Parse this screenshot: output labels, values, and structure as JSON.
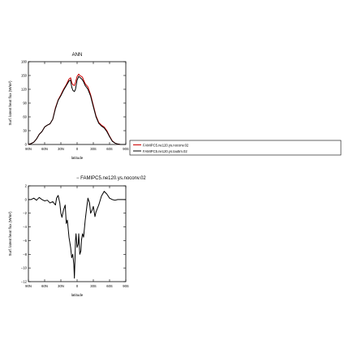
{
  "chart_data": [
    {
      "type": "line",
      "title": "ANN",
      "xlabel": "latitude",
      "ylabel": "Surf. latent heat flux (W/m²)",
      "xlim": [
        90,
        -90
      ],
      "ylim": [
        0,
        180
      ],
      "x_ticks": [
        90,
        60,
        30,
        0,
        -30,
        -60,
        -90
      ],
      "x_tick_labels": [
        "90N",
        "60N",
        "30N",
        "0",
        "30S",
        "60S",
        "90S"
      ],
      "y_ticks": [
        0,
        30,
        60,
        90,
        120,
        150,
        180
      ],
      "y_tick_labels": [
        "0",
        "30",
        "60",
        "90",
        "120",
        "150",
        "180"
      ],
      "legend": {
        "placement": "right",
        "entries": [
          {
            "label": "FAMIPC5.ne120.ys.noconv.02",
            "color": "#cc0000"
          },
          {
            "label": "FAMIPC5.ne120.ys.tau5m.02",
            "color": "#000000"
          }
        ]
      },
      "x": [
        90,
        85,
        80,
        75,
        70,
        65,
        60,
        55,
        50,
        45,
        40,
        35,
        30,
        25,
        20,
        15,
        12,
        10,
        8,
        5,
        3,
        0,
        -3,
        -5,
        -8,
        -10,
        -12,
        -15,
        -20,
        -25,
        -30,
        -35,
        -40,
        -45,
        -50,
        -55,
        -60,
        -65,
        -70,
        -75,
        -80,
        -85,
        -90
      ],
      "series": [
        {
          "name": "FAMIPC5.ne120.ys.noconv.02",
          "color": "#cc0000",
          "values": [
            0,
            2,
            5,
            12,
            22,
            28,
            38,
            42,
            45,
            55,
            80,
            97,
            108,
            120,
            130,
            142,
            145,
            135,
            130,
            128,
            135,
            148,
            153,
            150,
            148,
            146,
            140,
            132,
            125,
            108,
            85,
            62,
            48,
            42,
            38,
            30,
            18,
            8,
            3,
            1,
            0,
            0,
            0
          ]
        },
        {
          "name": "FAMIPC5.ne120.ys.tau5m.02",
          "color": "#000000",
          "values": [
            0,
            2,
            5,
            12,
            22,
            28,
            38,
            42,
            45,
            55,
            78,
            96,
            106,
            118,
            128,
            138,
            140,
            125,
            118,
            115,
            120,
            140,
            148,
            146,
            143,
            140,
            136,
            128,
            120,
            105,
            82,
            60,
            46,
            40,
            36,
            28,
            17,
            7,
            3,
            1,
            0,
            0,
            0
          ]
        }
      ]
    },
    {
      "type": "line",
      "title": "",
      "xlabel": "latitude",
      "ylabel": "Surf. latent heat flux (W/m²)",
      "xlim": [
        90,
        -90
      ],
      "ylim": [
        -12,
        2
      ],
      "x_ticks": [
        90,
        60,
        30,
        0,
        -30,
        -60,
        -90
      ],
      "x_tick_labels": [
        "90N",
        "60N",
        "30N",
        "0",
        "30S",
        "60S",
        "90S"
      ],
      "y_ticks": [
        -12,
        -10,
        -8,
        -6,
        -4,
        -2,
        0,
        2
      ],
      "y_tick_labels": [
        "−12",
        "−10",
        "−8",
        "−6",
        "−4",
        "−2",
        "0",
        "2"
      ],
      "legend": {
        "placement": "top-right",
        "entries": [
          {
            "label": "− FAMIPC5.ne120.ys.noconv.02",
            "color": "#000000"
          }
        ]
      },
      "x": [
        90,
        85,
        80,
        75,
        70,
        65,
        60,
        55,
        50,
        45,
        40,
        38,
        35,
        32,
        30,
        28,
        25,
        22,
        20,
        18,
        15,
        12,
        10,
        8,
        6,
        5,
        4,
        3,
        2,
        0,
        -2,
        -3,
        -5,
        -7,
        -8,
        -10,
        -12,
        -15,
        -18,
        -20,
        -23,
        -25,
        -28,
        -30,
        -33,
        -35,
        -40,
        -45,
        -50,
        -55,
        -60,
        -65,
        -70,
        -75,
        -80,
        -85,
        -90
      ],
      "series": [
        {
          "name": "",
          "color": "#000000",
          "values": [
            0,
            0,
            0.2,
            -0.1,
            0.3,
            0,
            -0.2,
            -0.1,
            -0.5,
            -0.3,
            -0.8,
            0.2,
            0.6,
            -0.5,
            -2.0,
            -2.6,
            -1.5,
            -0.8,
            -3.5,
            -3.0,
            -5.5,
            -7.0,
            -8.5,
            -8.0,
            -9.5,
            -11.5,
            -9.0,
            -6.0,
            -5.0,
            -7.0,
            -6.5,
            -5.0,
            -8.0,
            -7.5,
            -6.0,
            -5.0,
            -5.5,
            -3.0,
            -1.0,
            0.2,
            -0.5,
            -2.0,
            -1.5,
            -1.0,
            -2.5,
            -1.8,
            -0.8,
            0.5,
            1.2,
            0.8,
            0.2,
            0,
            -0.1,
            0,
            0,
            0,
            0
          ]
        }
      ]
    }
  ]
}
